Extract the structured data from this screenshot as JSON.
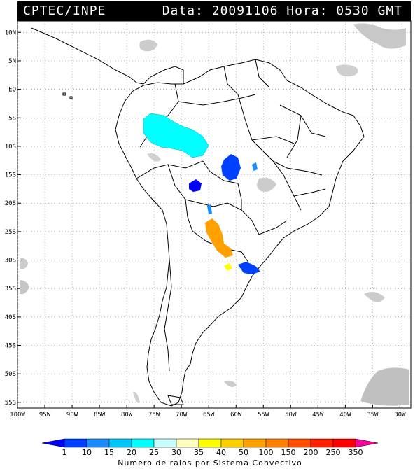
{
  "header": {
    "source": "CPTEC/INPE",
    "datetime": "Data: 20091106 Hora: 0530 GMT"
  },
  "map": {
    "lat_labels": [
      "10N",
      "5N",
      "EQ",
      "5S",
      "10S",
      "15S",
      "20S",
      "25S",
      "30S",
      "35S",
      "40S",
      "45S",
      "50S",
      "55S"
    ],
    "lat_values": [
      10,
      5,
      0,
      -5,
      -10,
      -15,
      -20,
      -25,
      -30,
      -35,
      -40,
      -45,
      -50,
      -55
    ],
    "lon_labels": [
      "100W",
      "95W",
      "90W",
      "85W",
      "80W",
      "75W",
      "70W",
      "65W",
      "60W",
      "55W",
      "50W",
      "45W",
      "40W",
      "35W",
      "30W"
    ],
    "lon_values": [
      -100,
      -95,
      -90,
      -85,
      -80,
      -75,
      -70,
      -65,
      -60,
      -55,
      -50,
      -45,
      -40,
      -35,
      -30
    ],
    "lon_range": [
      -100,
      -28
    ],
    "lat_range": [
      -56,
      12
    ],
    "grid": "dotted"
  },
  "colorbar": {
    "labels": [
      "1",
      "10",
      "15",
      "20",
      "25",
      "30",
      "35",
      "40",
      "50",
      "100",
      "150",
      "200",
      "250",
      "350"
    ],
    "colors": [
      "#0000ff",
      "#0040ff",
      "#1a8cff",
      "#00c8ff",
      "#00ffff",
      "#c8ffff",
      "#ffffc0",
      "#ffff00",
      "#ffd000",
      "#ffa000",
      "#ff8000",
      "#ff5000",
      "#ff2000",
      "#ff0000",
      "#ff00a0"
    ],
    "title": "Numero de raios por Sistema Convectivo"
  },
  "convective_systems": [
    {
      "lon": -70,
      "lat": -7.5,
      "color": "#00ffff"
    },
    {
      "lon": -60,
      "lat": -13.0,
      "color": "#0040ff"
    },
    {
      "lon": -66.2,
      "lat": -16.0,
      "color": "#0000ff"
    },
    {
      "lon": -63.5,
      "lat": -20.5,
      "color": "#1a8cff"
    },
    {
      "lon": -61.5,
      "lat": -25.5,
      "color": "#ffa000"
    },
    {
      "lon": -60,
      "lat": -29.5,
      "color": "#ffff00"
    },
    {
      "lon": -57.5,
      "lat": -31.0,
      "color": "#0040ff"
    }
  ]
}
